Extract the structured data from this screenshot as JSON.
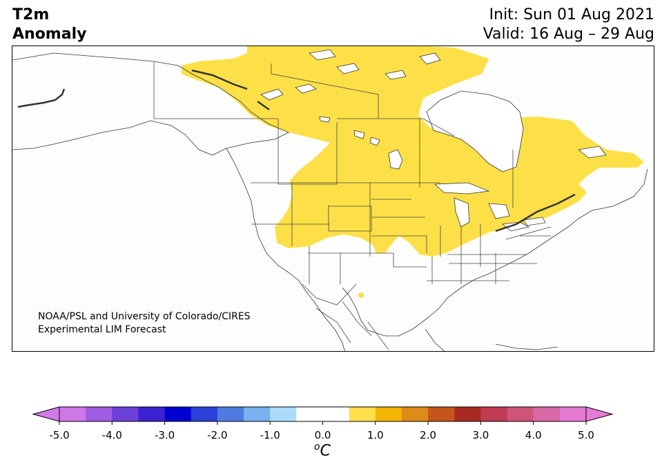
{
  "header": {
    "title_line1": "T2m",
    "title_line2": "Anomaly",
    "init_text": "Init: Sun 01 Aug 2021",
    "valid_text": "Valid: 16 Aug – 29 Aug"
  },
  "credit": {
    "line1": "NOAA/PSL and University of Colorado/CIRES",
    "line2": "Experimental LIM Forecast"
  },
  "map": {
    "land_color": "#fdfdfb",
    "border_color": "#333333",
    "anomaly_fill_color": "#fde047",
    "anomaly_fill_range": "0.5 to 1.0 °C"
  },
  "colorbar": {
    "bins": [
      -5.0,
      -4.5,
      -4.0,
      -3.5,
      -3.0,
      -2.5,
      -2.0,
      -1.5,
      -1.0,
      -0.5,
      0.5,
      1.0,
      1.5,
      2.0,
      2.5,
      3.0,
      3.5,
      4.0,
      4.5,
      5.0
    ],
    "colors": [
      "#cf78e8",
      "#a05ce0",
      "#6c3fd8",
      "#3a22d0",
      "#0000d0",
      "#2a40d8",
      "#4f7ae0",
      "#77b1ee",
      "#acdafb",
      "#ffffff",
      "#ffe04a",
      "#f4b400",
      "#dc8a18",
      "#c4561d",
      "#a82a22",
      "#c03a52",
      "#ce5478",
      "#d868a4",
      "#e47ad2"
    ],
    "under_color": "#d27ae8",
    "over_color": "#e87ad8",
    "tick_labels": [
      "-5.0",
      "-4.0",
      "-3.0",
      "-2.0",
      "-1.0",
      "0.0",
      "1.0",
      "2.0",
      "3.0",
      "4.0",
      "5.0"
    ],
    "unit_sup": "o",
    "unit_main": "C"
  }
}
